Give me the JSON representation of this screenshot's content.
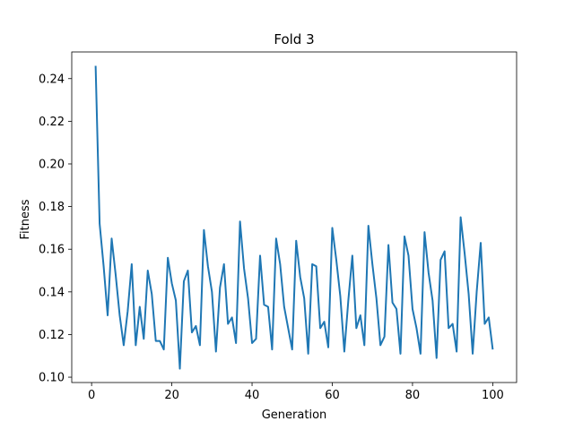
{
  "chart_data": {
    "type": "line",
    "title": "Fold 3",
    "xlabel": "Generation",
    "ylabel": "Fitness",
    "xlim": [
      -4.95,
      105.95
    ],
    "ylim": [
      0.0975,
      0.2525
    ],
    "xticks": [
      0,
      20,
      40,
      60,
      80,
      100
    ],
    "yticks": [
      0.1,
      0.12,
      0.14,
      0.16,
      0.18,
      0.2,
      0.22,
      0.24
    ],
    "ytick_labels": [
      "0.10",
      "0.12",
      "0.14",
      "0.16",
      "0.18",
      "0.20",
      "0.22",
      "0.24"
    ],
    "grid": false,
    "legend": "none",
    "series": [
      {
        "color": "#1f77b4",
        "x": [
          1,
          2,
          3,
          4,
          5,
          6,
          7,
          8,
          9,
          10,
          11,
          12,
          13,
          14,
          15,
          16,
          17,
          18,
          19,
          20,
          21,
          22,
          23,
          24,
          25,
          26,
          27,
          28,
          29,
          30,
          31,
          32,
          33,
          34,
          35,
          36,
          37,
          38,
          39,
          40,
          41,
          42,
          43,
          44,
          45,
          46,
          47,
          48,
          49,
          50,
          51,
          52,
          53,
          54,
          55,
          56,
          57,
          58,
          59,
          60,
          61,
          62,
          63,
          64,
          65,
          66,
          67,
          68,
          69,
          70,
          71,
          72,
          73,
          74,
          75,
          76,
          77,
          78,
          79,
          80,
          81,
          82,
          83,
          84,
          85,
          86,
          87,
          88,
          89,
          90,
          91,
          92,
          93,
          94,
          95,
          96,
          97,
          98,
          99,
          100
        ],
        "y": [
          0.246,
          0.172,
          0.152,
          0.129,
          0.165,
          0.148,
          0.129,
          0.115,
          0.131,
          0.153,
          0.115,
          0.133,
          0.118,
          0.15,
          0.139,
          0.117,
          0.117,
          0.113,
          0.156,
          0.144,
          0.136,
          0.104,
          0.145,
          0.15,
          0.121,
          0.124,
          0.115,
          0.169,
          0.152,
          0.14,
          0.112,
          0.142,
          0.153,
          0.125,
          0.128,
          0.116,
          0.173,
          0.151,
          0.137,
          0.116,
          0.118,
          0.157,
          0.134,
          0.133,
          0.113,
          0.165,
          0.153,
          0.133,
          0.123,
          0.113,
          0.164,
          0.147,
          0.137,
          0.111,
          0.153,
          0.152,
          0.123,
          0.126,
          0.114,
          0.17,
          0.155,
          0.138,
          0.112,
          0.136,
          0.157,
          0.123,
          0.129,
          0.115,
          0.171,
          0.153,
          0.137,
          0.115,
          0.119,
          0.162,
          0.135,
          0.132,
          0.111,
          0.166,
          0.157,
          0.132,
          0.123,
          0.111,
          0.168,
          0.149,
          0.136,
          0.109,
          0.155,
          0.159,
          0.123,
          0.125,
          0.112,
          0.175,
          0.158,
          0.139,
          0.111,
          0.14,
          0.163,
          0.125,
          0.128,
          0.113
        ]
      }
    ]
  }
}
